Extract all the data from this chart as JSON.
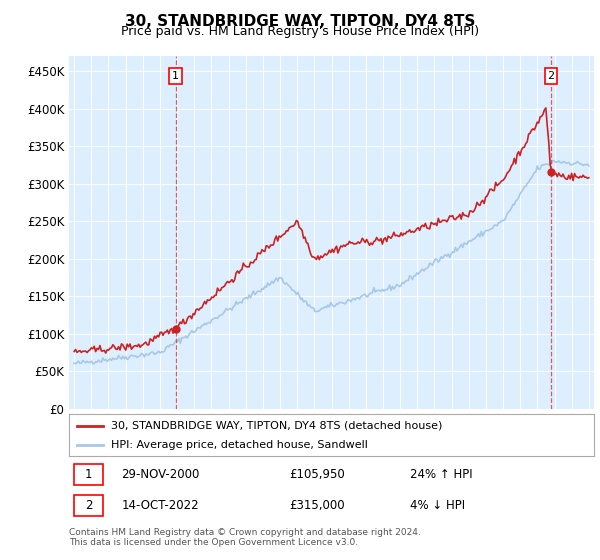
{
  "title": "30, STANDBRIDGE WAY, TIPTON, DY4 8TS",
  "subtitle": "Price paid vs. HM Land Registry's House Price Index (HPI)",
  "ylabel_ticks": [
    "£0",
    "£50K",
    "£100K",
    "£150K",
    "£200K",
    "£250K",
    "£300K",
    "£350K",
    "£400K",
    "£450K"
  ],
  "ytick_values": [
    0,
    50000,
    100000,
    150000,
    200000,
    250000,
    300000,
    350000,
    400000,
    450000
  ],
  "ylim": [
    0,
    470000
  ],
  "xlim_start": 1994.7,
  "xlim_end": 2025.3,
  "hpi_color": "#a8c8e8",
  "price_color": "#cc2222",
  "background_color": "#ddeeff",
  "marker1_date": 2000.92,
  "marker1_price": 105950,
  "marker1_label": "1",
  "marker1_date_str": "29-NOV-2000",
  "marker1_price_str": "£105,950",
  "marker1_hpi_str": "24% ↑ HPI",
  "marker2_date": 2022.79,
  "marker2_price": 315000,
  "marker2_label": "2",
  "marker2_date_str": "14-OCT-2022",
  "marker2_price_str": "£315,000",
  "marker2_hpi_str": "4% ↓ HPI",
  "legend_line1": "30, STANDBRIDGE WAY, TIPTON, DY4 8TS (detached house)",
  "legend_line2": "HPI: Average price, detached house, Sandwell",
  "footnote": "Contains HM Land Registry data © Crown copyright and database right 2024.\nThis data is licensed under the Open Government Licence v3.0."
}
